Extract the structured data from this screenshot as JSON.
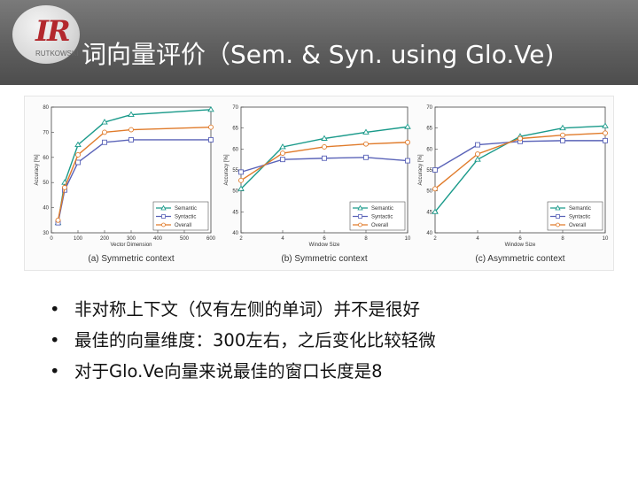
{
  "header": {
    "logo_text": "IR",
    "logo_sub": "RUTKOWSKI",
    "title": "词向量评价（Sem. & Syn. using Glo.Ve)"
  },
  "chart_data": [
    {
      "type": "line",
      "caption": "(a) Symmetric context",
      "xlabel": "Vector Dimension",
      "ylabel": "Accuracy [%]",
      "xlim": [
        0,
        600
      ],
      "ylim": [
        30,
        80
      ],
      "xticks": [
        "0",
        "100",
        "200",
        "300",
        "400",
        "500",
        "600"
      ],
      "yticks": [
        "30",
        "40",
        "50",
        "60",
        "70",
        "80"
      ],
      "x": [
        25,
        50,
        100,
        200,
        300,
        600
      ],
      "series": [
        {
          "name": "Semantic",
          "color": "#1a9a8a",
          "values": [
            34,
            50,
            65,
            74,
            77,
            79
          ]
        },
        {
          "name": "Syntactic",
          "color": "#5a63b8",
          "values": [
            34,
            47,
            58,
            66,
            67,
            67
          ]
        },
        {
          "name": "Overall",
          "color": "#e07b2b",
          "values": [
            35,
            48,
            61,
            70,
            71,
            72
          ]
        }
      ],
      "legend": "bottom-right",
      "grid": false
    },
    {
      "type": "line",
      "caption": "(b) Symmetric context",
      "xlabel": "Window Size",
      "ylabel": "Accuracy [%]",
      "xlim": [
        2,
        10
      ],
      "ylim": [
        40,
        70
      ],
      "xticks": [
        "2",
        "4",
        "6",
        "8",
        "10"
      ],
      "yticks": [
        "40",
        "45",
        "50",
        "55",
        "60",
        "65",
        "70"
      ],
      "x": [
        2,
        4,
        6,
        8,
        10
      ],
      "series": [
        {
          "name": "Semantic",
          "color": "#1a9a8a",
          "values": [
            50.5,
            60.5,
            62.5,
            64,
            65.3
          ]
        },
        {
          "name": "Syntactic",
          "color": "#5a63b8",
          "values": [
            54.5,
            57.5,
            57.8,
            58,
            57.2
          ]
        },
        {
          "name": "Overall",
          "color": "#e07b2b",
          "values": [
            52.5,
            59,
            60.5,
            61.2,
            61.6
          ]
        }
      ],
      "legend": "bottom-right",
      "grid": false
    },
    {
      "type": "line",
      "caption": "(c) Asymmetric context",
      "xlabel": "Window Size",
      "ylabel": "Accuracy [%]",
      "xlim": [
        2,
        10
      ],
      "ylim": [
        40,
        70
      ],
      "xticks": [
        "2",
        "4",
        "6",
        "8",
        "10"
      ],
      "yticks": [
        "40",
        "45",
        "50",
        "55",
        "60",
        "65",
        "70"
      ],
      "x": [
        2,
        4,
        6,
        8,
        10
      ],
      "series": [
        {
          "name": "Semantic",
          "color": "#1a9a8a",
          "values": [
            45,
            57.5,
            63,
            65,
            65.5
          ]
        },
        {
          "name": "Syntactic",
          "color": "#5a63b8",
          "values": [
            55,
            61,
            61.8,
            62,
            62
          ]
        },
        {
          "name": "Overall",
          "color": "#e07b2b",
          "values": [
            50.5,
            58.8,
            62.5,
            63.3,
            63.8
          ]
        }
      ],
      "legend": "bottom-right",
      "grid": false
    }
  ],
  "bullets": [
    "非对称上下文（仅有左侧的单词）并不是很好",
    "最佳的向量维度：300左右，之后变化比较轻微",
    "对于Glo.Ve向量来说最佳的窗口长度是8"
  ],
  "bullet_symbol": "•"
}
